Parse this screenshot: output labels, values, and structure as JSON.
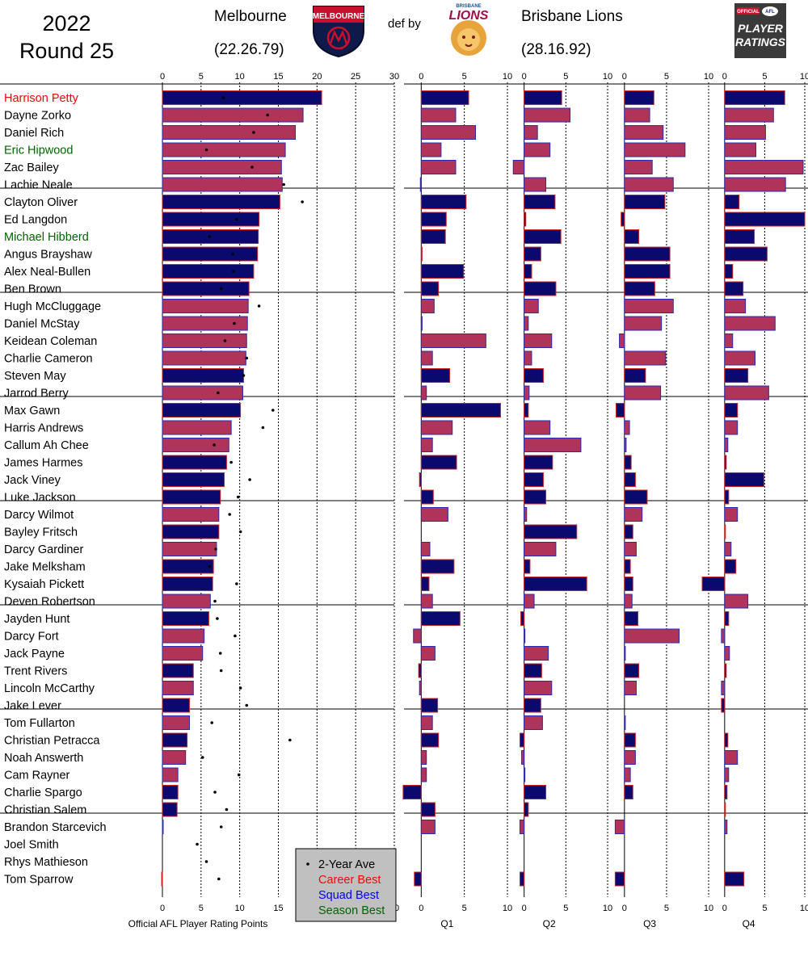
{
  "header": {
    "year": "2022",
    "round": "Round 25",
    "home_team": "Melbourne",
    "home_score": "(22.26.79)",
    "result": "def by",
    "away_team": "Brisbane Lions",
    "away_score": "(28.16.92)",
    "melbourne_logo_text": "MELBOURNE",
    "lions_logo_small": "BRISBANE",
    "lions_logo_text": "LIONS",
    "afl_logo_official": "OFFICIAL",
    "afl_logo_afl": "AFL",
    "afl_logo_player": "PLAYER",
    "afl_logo_ratings": "RATINGS"
  },
  "colors": {
    "melbourne_navy": "#0a0a6e",
    "lions_maroon": "#b0345a",
    "bar_outline_navy_team": "#cc2222",
    "bar_outline_maroon_team": "#2a2ab5",
    "career_best": "#ff0000",
    "squad_best": "#0000ff",
    "season_best": "#006400",
    "legend_bg": "#c0c0c0"
  },
  "legend": {
    "avg": "2-Year Ave",
    "career": "Career Best",
    "squad": "Squad Best",
    "season": "Season Best"
  },
  "chart_data": {
    "type": "bar",
    "title": "",
    "xlabel": "Official AFL Player Rating Points",
    "total_axis": {
      "ticks": [
        "0",
        "5",
        "10",
        "15",
        "20",
        "25",
        "30"
      ],
      "xlim": [
        0,
        30
      ]
    },
    "quarter_axis": {
      "ticks": [
        "0",
        "5",
        "10"
      ],
      "xlim": [
        -2,
        10
      ]
    },
    "quarter_labels": [
      "Q1",
      "Q2",
      "Q3",
      "Q4"
    ],
    "groups_of": 6,
    "players": [
      {
        "name": "Harrison Petty",
        "team": "MEL",
        "highlight": "career",
        "total": 20.6,
        "avg": 7.9,
        "q": [
          5.5,
          4.5,
          3.5,
          7.5
        ]
      },
      {
        "name": "Dayne Zorko",
        "team": "BL",
        "highlight": "",
        "total": 18.2,
        "avg": 13.6,
        "q": [
          4.0,
          5.5,
          3.0,
          6.1
        ]
      },
      {
        "name": "Daniel Rich",
        "team": "BL",
        "highlight": "",
        "total": 17.2,
        "avg": 11.8,
        "q": [
          6.3,
          1.6,
          4.6,
          5.1
        ]
      },
      {
        "name": "Eric Hipwood",
        "team": "BL",
        "highlight": "season",
        "total": 15.9,
        "avg": 5.7,
        "q": [
          2.3,
          3.1,
          7.2,
          3.9
        ]
      },
      {
        "name": "Zac Bailey",
        "team": "BL",
        "highlight": "",
        "total": 15.4,
        "avg": 11.6,
        "q": [
          4.0,
          -1.3,
          3.3,
          9.8
        ]
      },
      {
        "name": "Lachie Neale",
        "team": "BL",
        "highlight": "",
        "total": 15.5,
        "avg": 15.7,
        "q": [
          -0.1,
          2.6,
          5.8,
          7.6
        ]
      },
      {
        "name": "Clayton Oliver",
        "team": "MEL",
        "highlight": "",
        "total": 15.2,
        "avg": 18.1,
        "q": [
          5.2,
          3.7,
          4.8,
          1.8
        ]
      },
      {
        "name": "Ed Langdon",
        "team": "MEL",
        "highlight": "",
        "total": 12.5,
        "avg": 9.6,
        "q": [
          2.9,
          0.2,
          -0.4,
          10.0
        ]
      },
      {
        "name": "Michael Hibberd",
        "team": "MEL",
        "highlight": "season",
        "total": 12.4,
        "avg": 6.1,
        "q": [
          2.8,
          4.4,
          1.7,
          3.7
        ]
      },
      {
        "name": "Angus Brayshaw",
        "team": "MEL",
        "highlight": "",
        "total": 12.3,
        "avg": 9.1,
        "q": [
          0.1,
          2.0,
          5.4,
          5.3
        ]
      },
      {
        "name": "Alex Neal-Bullen",
        "team": "MEL",
        "highlight": "",
        "total": 11.8,
        "avg": 9.2,
        "q": [
          4.9,
          0.9,
          5.4,
          1.0
        ]
      },
      {
        "name": "Ben Brown",
        "team": "MEL",
        "highlight": "",
        "total": 11.2,
        "avg": 7.6,
        "q": [
          2.0,
          3.8,
          3.6,
          2.3
        ]
      },
      {
        "name": "Hugh McCluggage",
        "team": "BL",
        "highlight": "",
        "total": 11.1,
        "avg": 12.5,
        "q": [
          1.5,
          1.7,
          5.8,
          2.6
        ]
      },
      {
        "name": "Daniel McStay",
        "team": "BL",
        "highlight": "",
        "total": 11.0,
        "avg": 9.3,
        "q": [
          0.1,
          0.5,
          4.4,
          6.3
        ]
      },
      {
        "name": "Keidean Coleman",
        "team": "BL",
        "highlight": "",
        "total": 10.9,
        "avg": 8.1,
        "q": [
          7.5,
          3.3,
          -0.6,
          1.0
        ]
      },
      {
        "name": "Charlie Cameron",
        "team": "BL",
        "highlight": "",
        "total": 10.8,
        "avg": 10.9,
        "q": [
          1.3,
          0.9,
          4.9,
          3.8
        ]
      },
      {
        "name": "Steven May",
        "team": "MEL",
        "highlight": "",
        "total": 10.5,
        "avg": 10.5,
        "q": [
          3.3,
          2.3,
          2.5,
          2.9
        ]
      },
      {
        "name": "Jarrod Berry",
        "team": "BL",
        "highlight": "",
        "total": 10.4,
        "avg": 7.2,
        "q": [
          0.6,
          0.6,
          4.3,
          5.5
        ]
      },
      {
        "name": "Max Gawn",
        "team": "MEL",
        "highlight": "",
        "total": 10.1,
        "avg": 14.3,
        "q": [
          9.2,
          0.5,
          -1.0,
          1.6
        ]
      },
      {
        "name": "Harris Andrews",
        "team": "BL",
        "highlight": "",
        "total": 8.9,
        "avg": 13.0,
        "q": [
          3.6,
          3.1,
          0.6,
          1.6
        ]
      },
      {
        "name": "Callum Ah Chee",
        "team": "BL",
        "highlight": "",
        "total": 8.6,
        "avg": 6.7,
        "q": [
          1.3,
          6.8,
          0.2,
          0.4
        ]
      },
      {
        "name": "James Harmes",
        "team": "MEL",
        "highlight": "",
        "total": 8.3,
        "avg": 8.9,
        "q": [
          4.1,
          3.4,
          0.8,
          0.2
        ]
      },
      {
        "name": "Jack Viney",
        "team": "MEL",
        "highlight": "",
        "total": 8.0,
        "avg": 11.3,
        "q": [
          -0.2,
          2.3,
          1.3,
          4.9
        ]
      },
      {
        "name": "Luke Jackson",
        "team": "MEL",
        "highlight": "",
        "total": 7.5,
        "avg": 9.8,
        "q": [
          1.4,
          2.6,
          2.7,
          0.5
        ]
      },
      {
        "name": "Darcy Wilmot",
        "team": "BL",
        "highlight": "",
        "total": 7.3,
        "avg": 8.7,
        "q": [
          3.1,
          0.3,
          2.1,
          1.6
        ]
      },
      {
        "name": "Bayley Fritsch",
        "team": "MEL",
        "highlight": "",
        "total": 7.3,
        "avg": 10.1,
        "q": [
          0.0,
          6.3,
          1.0,
          0.1
        ]
      },
      {
        "name": "Darcy Gardiner",
        "team": "BL",
        "highlight": "",
        "total": 7.0,
        "avg": 6.9,
        "q": [
          1.0,
          3.8,
          1.4,
          0.8
        ]
      },
      {
        "name": "Jake Melksham",
        "team": "MEL",
        "highlight": "",
        "total": 6.6,
        "avg": 6.1,
        "q": [
          3.8,
          0.7,
          0.7,
          1.4
        ]
      },
      {
        "name": "Kysaiah Pickett",
        "team": "MEL",
        "highlight": "",
        "total": 6.5,
        "avg": 9.6,
        "q": [
          0.9,
          7.5,
          1.0,
          -2.8
        ]
      },
      {
        "name": "Deven Robertson",
        "team": "BL",
        "highlight": "",
        "total": 6.2,
        "avg": 6.8,
        "q": [
          1.3,
          1.2,
          0.9,
          2.9
        ]
      },
      {
        "name": "Jayden Hunt",
        "team": "MEL",
        "highlight": "",
        "total": 6.0,
        "avg": 7.1,
        "q": [
          4.5,
          -0.4,
          1.6,
          0.5
        ]
      },
      {
        "name": "Darcy Fort",
        "team": "BL",
        "highlight": "",
        "total": 5.4,
        "avg": 9.4,
        "q": [
          -0.9,
          0.1,
          6.5,
          -0.4
        ]
      },
      {
        "name": "Jack Payne",
        "team": "BL",
        "highlight": "",
        "total": 5.2,
        "avg": 7.5,
        "q": [
          1.6,
          2.9,
          0.1,
          0.6
        ]
      },
      {
        "name": "Trent Rivers",
        "team": "MEL",
        "highlight": "",
        "total": 4.0,
        "avg": 7.6,
        "q": [
          -0.3,
          2.1,
          1.7,
          0.2
        ]
      },
      {
        "name": "Lincoln McCarthy",
        "team": "BL",
        "highlight": "",
        "total": 4.0,
        "avg": 10.1,
        "q": [
          -0.2,
          3.3,
          1.4,
          -0.4
        ]
      },
      {
        "name": "Jake Lever",
        "team": "MEL",
        "highlight": "",
        "total": 3.5,
        "avg": 10.9,
        "q": [
          1.9,
          2.0,
          0.0,
          -0.4
        ]
      },
      {
        "name": "Tom Fullarton",
        "team": "BL",
        "highlight": "",
        "total": 3.5,
        "avg": 6.4,
        "q": [
          1.3,
          2.2,
          0.1,
          0.0
        ]
      },
      {
        "name": "Christian Petracca",
        "team": "MEL",
        "highlight": "",
        "total": 3.2,
        "avg": 16.5,
        "q": [
          2.0,
          -0.5,
          1.3,
          0.4
        ]
      },
      {
        "name": "Noah Answerth",
        "team": "BL",
        "highlight": "",
        "total": 3.0,
        "avg": 5.2,
        "q": [
          0.6,
          -0.3,
          1.3,
          1.6
        ]
      },
      {
        "name": "Cam Rayner",
        "team": "BL",
        "highlight": "",
        "total": 2.0,
        "avg": 9.9,
        "q": [
          0.6,
          0.1,
          0.7,
          0.5
        ]
      },
      {
        "name": "Charlie Spargo",
        "team": "MEL",
        "highlight": "",
        "total": 2.0,
        "avg": 6.8,
        "q": [
          -2.1,
          2.6,
          1.0,
          0.3
        ]
      },
      {
        "name": "Christian Salem",
        "team": "MEL",
        "highlight": "",
        "total": 1.9,
        "avg": 8.3,
        "q": [
          1.6,
          0.5,
          0.0,
          0.1
        ]
      },
      {
        "name": "Brandon Starcevich",
        "team": "BL",
        "highlight": "",
        "total": 0.1,
        "avg": 7.6,
        "q": [
          1.6,
          -0.5,
          -1.1,
          0.3
        ]
      },
      {
        "name": "Joel Smith",
        "team": "MEL",
        "highlight": "",
        "total": 0.0,
        "avg": 4.5,
        "q": [
          0.0,
          0.0,
          0.0,
          0.0
        ]
      },
      {
        "name": "Rhys Mathieson",
        "team": "BL",
        "highlight": "",
        "total": 0.0,
        "avg": 5.7,
        "q": [
          0.0,
          0.0,
          0.0,
          0.0
        ]
      },
      {
        "name": "Tom Sparrow",
        "team": "MEL",
        "highlight": "",
        "total": -0.1,
        "avg": 7.3,
        "q": [
          -0.8,
          -0.5,
          -1.1,
          2.4
        ]
      }
    ]
  }
}
